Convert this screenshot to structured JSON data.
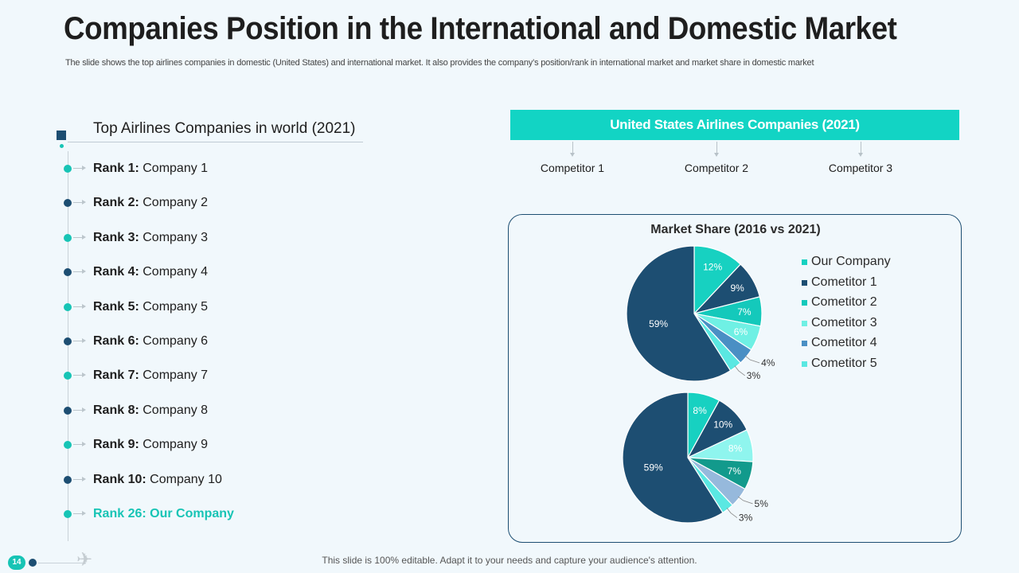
{
  "slide": {
    "title": "Companies Position in the International and Domestic Market",
    "subtitle": "The slide shows the top airlines companies in domestic (United States) and international market. It also provides the company’s position/rank in international market and market share in domestic market",
    "footer": "This slide is 100% editable. Adapt it to your needs and capture your audience's attention.",
    "page_number": "14"
  },
  "colors": {
    "teal": "#17c4b5",
    "navy": "#1d4e72",
    "banner": "#12d4c4"
  },
  "world_list": {
    "title": "Top Airlines Companies in world (2021)",
    "items": [
      {
        "rank": "Rank 1:",
        "company": "Company 1",
        "dot": "#17c4b5"
      },
      {
        "rank": "Rank 2:",
        "company": "Company 2",
        "dot": "#1d4e72"
      },
      {
        "rank": "Rank 3:",
        "company": "Company 3",
        "dot": "#17c4b5"
      },
      {
        "rank": "Rank 4:",
        "company": "Company 4",
        "dot": "#1d4e72"
      },
      {
        "rank": "Rank 5:",
        "company": "Company 5",
        "dot": "#17c4b5"
      },
      {
        "rank": "Rank 6:",
        "company": "Company 6",
        "dot": "#1d4e72"
      },
      {
        "rank": "Rank 7:",
        "company": "Company 7",
        "dot": "#17c4b5"
      },
      {
        "rank": "Rank 8:",
        "company": "Company 8",
        "dot": "#1d4e72"
      },
      {
        "rank": "Rank 9:",
        "company": "Company 9",
        "dot": "#17c4b5"
      },
      {
        "rank": "Rank 10:",
        "company": "Company 10",
        "dot": "#1d4e72"
      }
    ],
    "our_company": "Rank 26: Our Company"
  },
  "us_market": {
    "title": "United States Airlines Companies (2021)",
    "competitors": [
      "Competitor 1",
      "Competitor 2",
      "Competitor 3"
    ]
  },
  "chart_data": {
    "type": "pie",
    "title": "Market Share (2016 vs 2021)",
    "categories": [
      "Our Company",
      "Cometitor 1",
      "Cometitor 2",
      "Cometitor 3",
      "Cometitor 4",
      "Cometitor 5",
      ""
    ],
    "colors": [
      "#17d1c1",
      "#1d4e72",
      "#14c9bb",
      "#6ff0e4",
      "#4a8fc4",
      "#5ae8e2",
      "#1d4e72"
    ],
    "legend_position": "right",
    "series": [
      {
        "values": [
          12,
          9,
          7,
          6,
          4,
          3,
          59
        ],
        "labels": [
          "12%",
          "9%",
          "7%",
          "6%",
          "4%",
          "3%",
          "59%"
        ]
      },
      {
        "values": [
          8,
          10,
          8,
          7,
          5,
          3,
          59
        ],
        "labels": [
          "8%",
          "10%",
          "8%",
          "7%",
          "5%",
          "3%",
          "59%"
        ],
        "colors": [
          "#17d1c1",
          "#1d4e72",
          "#8ff5ee",
          "#129a8c",
          "#96b9dc",
          "#5ae8e2",
          "#1d4e72"
        ]
      }
    ]
  }
}
